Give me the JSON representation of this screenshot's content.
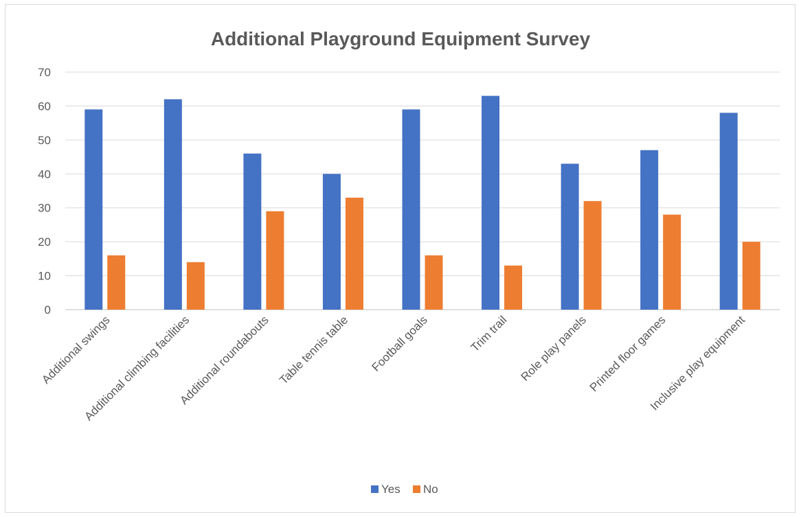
{
  "chart_data": {
    "type": "bar",
    "title": "Additional Playground Equipment Survey",
    "categories": [
      "Additional swings",
      "Additional climbing facilities",
      "Additional roundabouts",
      "Table tennis table",
      "Football goals",
      "Trim trail",
      "Role play panels",
      "Printed floor games",
      "Inclusive play equipment"
    ],
    "series": [
      {
        "name": "Yes",
        "color": "#4472c4",
        "values": [
          59,
          62,
          46,
          40,
          59,
          63,
          43,
          47,
          58
        ]
      },
      {
        "name": "No",
        "color": "#ed7d31",
        "values": [
          16,
          14,
          29,
          33,
          16,
          13,
          32,
          28,
          20
        ]
      }
    ],
    "ylim": [
      0,
      70
    ],
    "yticks": [
      0,
      10,
      20,
      30,
      40,
      50,
      60,
      70
    ],
    "grid": true,
    "legend_position": "bottom"
  }
}
